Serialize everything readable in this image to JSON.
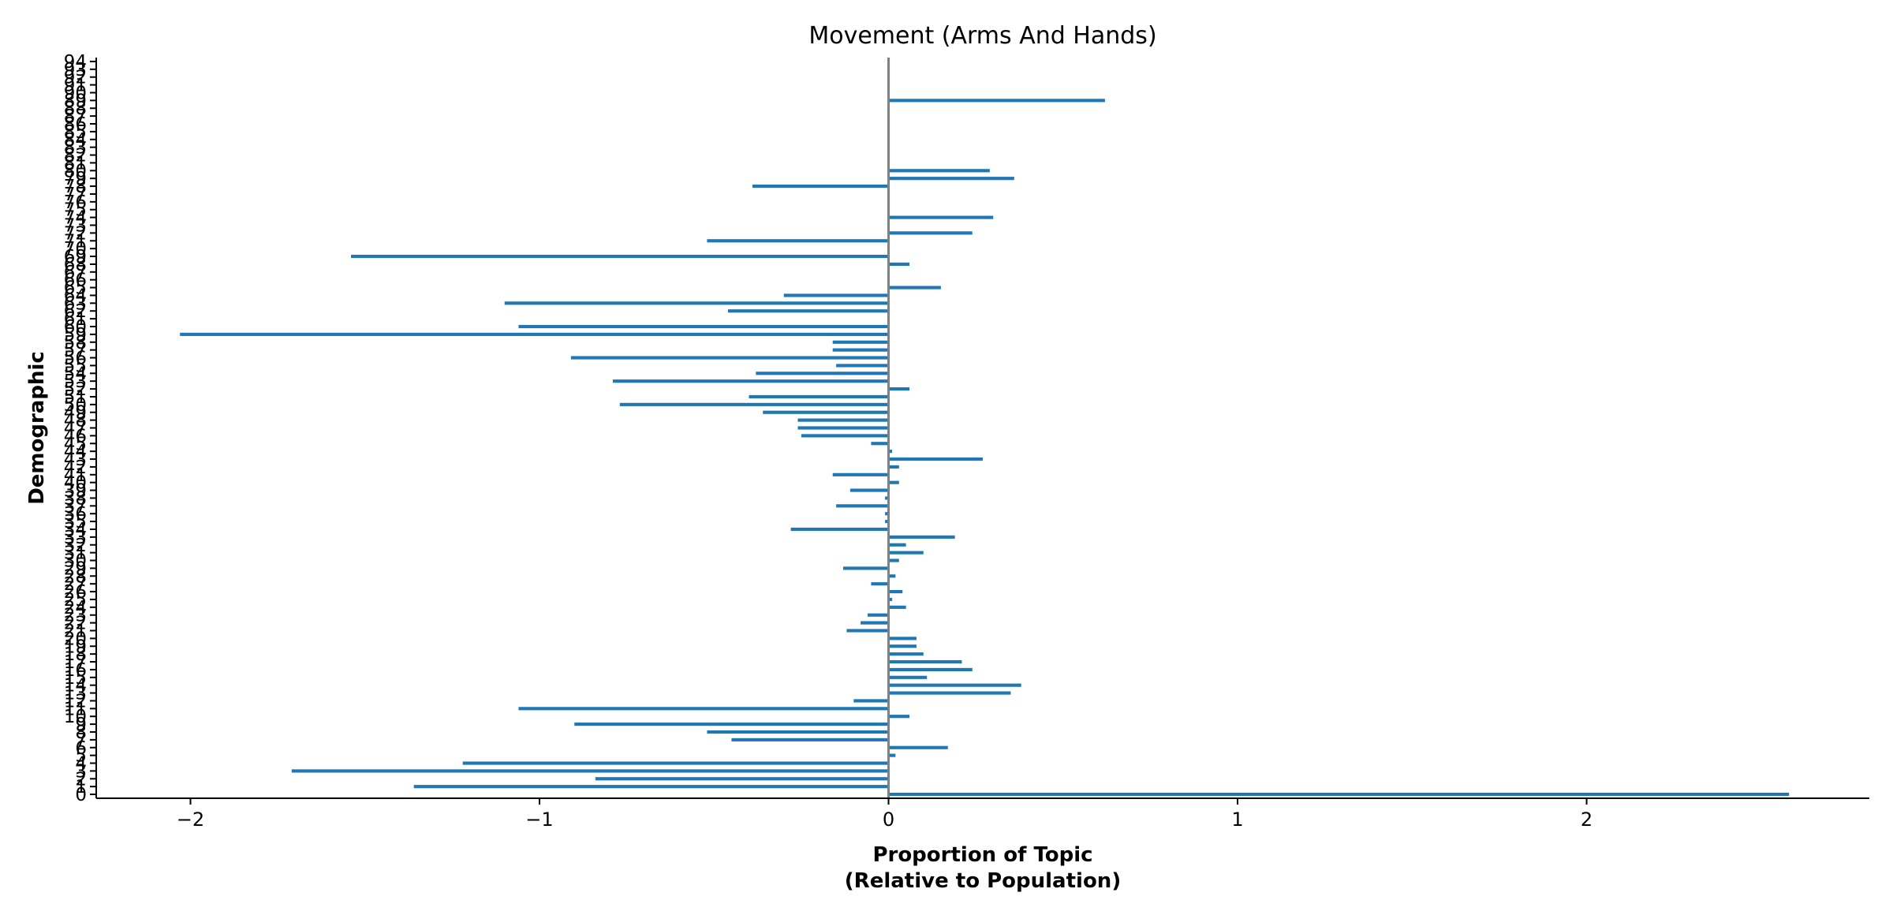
{
  "chart_data": {
    "type": "bar",
    "orientation": "horizontal",
    "title": "Movement (Arms And Hands)",
    "xlabel": "Proportion of Topic\n(Relative to Population)",
    "ylabel": "Demographic",
    "xlim": [
      -2.27,
      2.81
    ],
    "ylim": [
      -0.5,
      94.5
    ],
    "xticks": [
      -2,
      -1,
      0,
      1,
      2
    ],
    "xtick_labels": [
      "−2",
      "−1",
      "0",
      "1",
      "2"
    ],
    "color": "#1f77b4",
    "zero_line_color": "#808080",
    "grid": false,
    "categories": [
      0,
      1,
      2,
      3,
      4,
      5,
      6,
      7,
      8,
      9,
      10,
      11,
      12,
      13,
      14,
      15,
      16,
      17,
      18,
      19,
      20,
      21,
      22,
      23,
      24,
      25,
      26,
      27,
      28,
      29,
      30,
      31,
      32,
      33,
      34,
      35,
      36,
      37,
      38,
      39,
      40,
      41,
      42,
      43,
      44,
      45,
      46,
      47,
      48,
      49,
      50,
      51,
      52,
      53,
      54,
      55,
      56,
      57,
      58,
      59,
      60,
      61,
      62,
      63,
      64,
      65,
      66,
      67,
      68,
      69,
      70,
      71,
      72,
      73,
      74,
      75,
      76,
      77,
      78,
      79,
      80,
      81,
      82,
      83,
      84,
      85,
      86,
      87,
      88,
      89,
      90,
      91,
      92,
      93,
      94
    ],
    "values": [
      2.58,
      -1.36,
      -0.84,
      -1.71,
      -1.22,
      0.02,
      0.17,
      -0.45,
      -0.52,
      -0.9,
      0.06,
      -1.06,
      -0.1,
      0.35,
      0.38,
      0.11,
      0.24,
      0.21,
      0.1,
      0.08,
      0.08,
      -0.12,
      -0.08,
      -0.06,
      0.05,
      0.01,
      0.04,
      -0.05,
      0.02,
      -0.13,
      0.03,
      0.1,
      0.05,
      0.19,
      -0.28,
      -0.01,
      -0.01,
      -0.15,
      -0.01,
      -0.11,
      0.03,
      -0.16,
      0.03,
      0.27,
      0.01,
      -0.05,
      -0.25,
      -0.26,
      -0.26,
      -0.36,
      -0.77,
      -0.4,
      0.06,
      -0.79,
      -0.38,
      -0.15,
      -0.91,
      -0.16,
      -0.16,
      -2.03,
      -1.06,
      0.0,
      -0.46,
      -1.1,
      -0.3,
      0.15,
      0.0,
      0.0,
      0.06,
      -1.54,
      0.0,
      -0.52,
      0.24,
      0.0,
      0.3,
      0.0,
      0.0,
      0.0,
      -0.39,
      0.36,
      0.29,
      0.0,
      0.0,
      0.0,
      0.0,
      0.0,
      0.0,
      0.0,
      0.0,
      0.62,
      0.0,
      0.0,
      0.0,
      0.0,
      0.0
    ]
  }
}
